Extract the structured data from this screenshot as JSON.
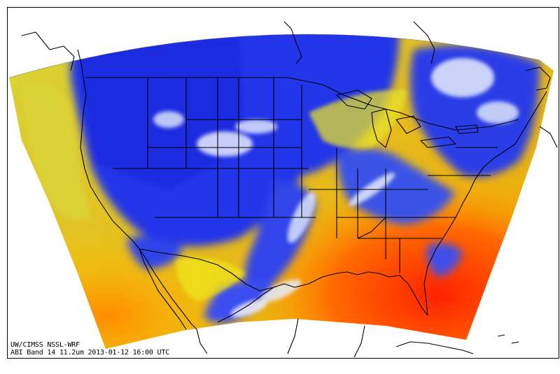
{
  "caption": {
    "source_line": "UW/CIMSS NSSL-WRF",
    "product_line": "ABI Band 14 11.2um 2013-01-12 16:00 UTC"
  },
  "colors": {
    "cold_cloud": "#1f2fe6",
    "cirrus": "#e6ecf8",
    "mid": "#e7e02a",
    "warm": "#f4b600",
    "hot": "#ff5a00",
    "very_hot": "#ff2a00",
    "outline": "#000000"
  }
}
